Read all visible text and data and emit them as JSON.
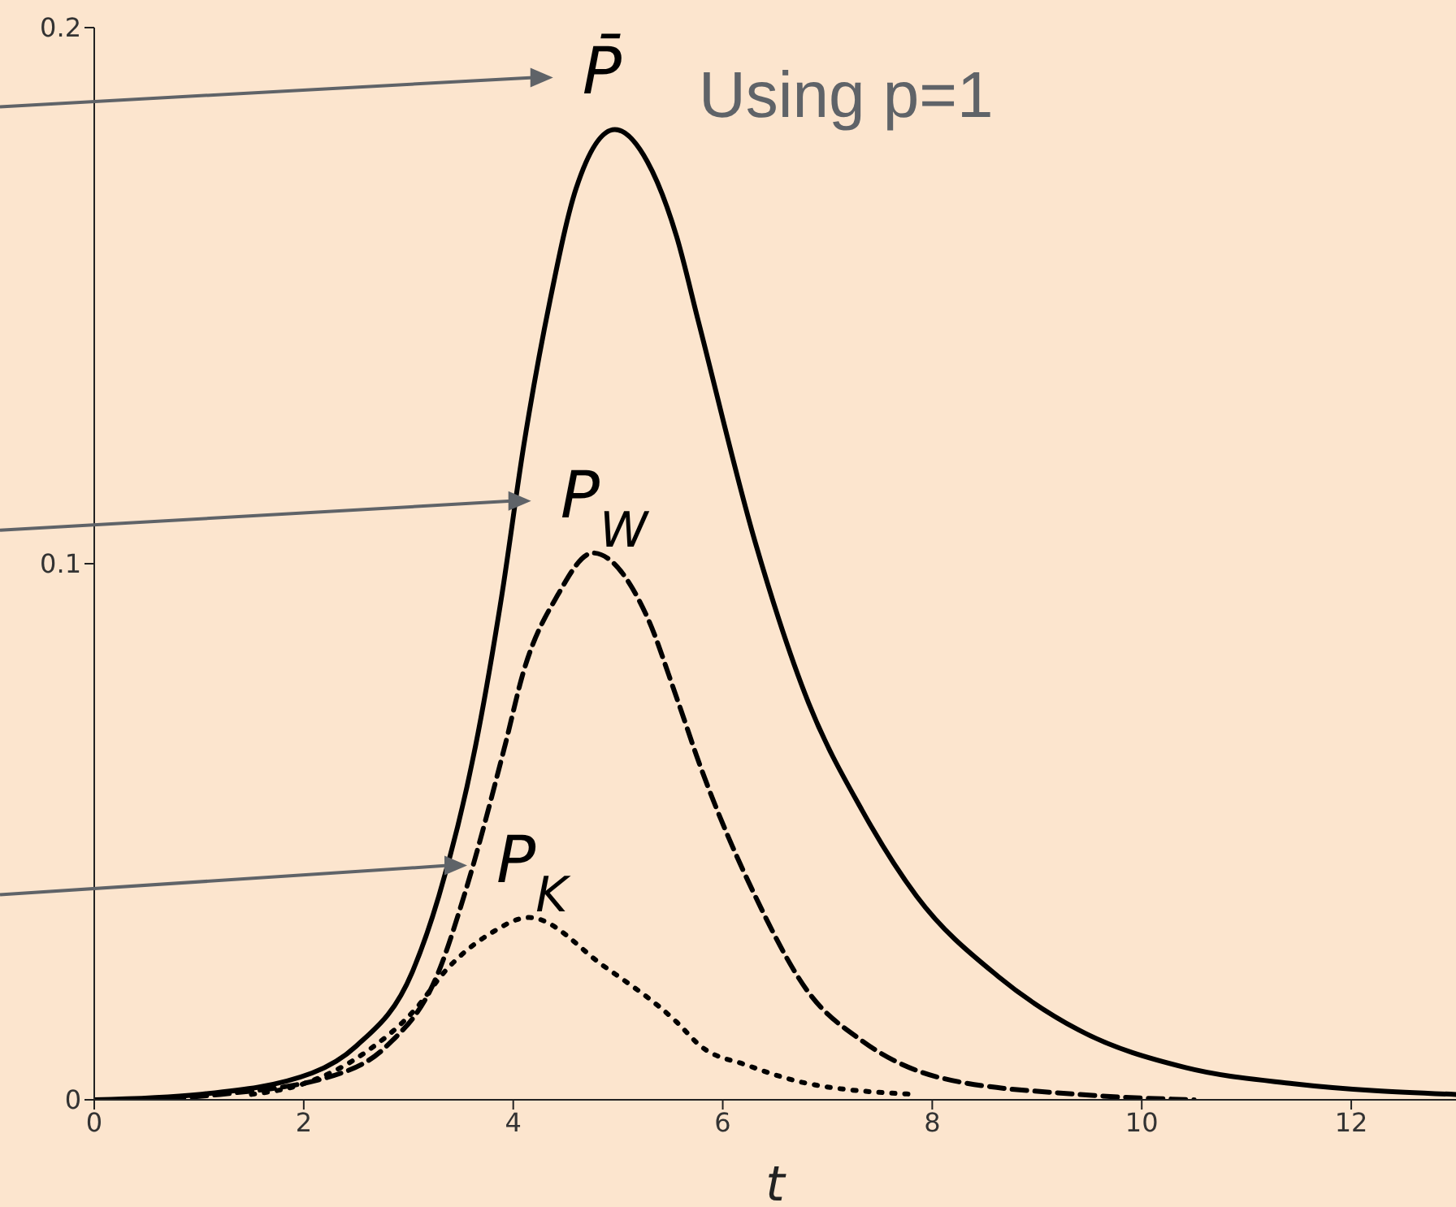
{
  "chart_data": {
    "type": "line",
    "xlabel": "t",
    "xlim": [
      0,
      13
    ],
    "xticks": [
      0,
      2,
      4,
      6,
      8,
      10,
      12
    ],
    "ylim": [
      0,
      0.2
    ],
    "yticks": [
      0,
      0.1,
      0.2
    ],
    "marker": "none",
    "annotations": [
      "Using p=1"
    ],
    "series": [
      {
        "name": "P̄",
        "color": "#000000",
        "line_style": "solid",
        "x": [
          0,
          1,
          2.08,
          2.5,
          3.04,
          3.29,
          3.64,
          3.89,
          4.1,
          4.35,
          4.6,
          4.97,
          5.28,
          5.56,
          5.77,
          6.31,
          6.82,
          7.33,
          7.85,
          8.63,
          9.4,
          10.42,
          11.45,
          13
        ],
        "values": [
          0,
          0.001,
          0.005,
          0.01,
          0.024,
          0.038,
          0.066,
          0.094,
          0.122,
          0.149,
          0.17,
          0.181,
          0.175,
          0.161,
          0.145,
          0.104,
          0.074,
          0.054,
          0.038,
          0.023,
          0.013,
          0.006,
          0.003,
          0.001
        ]
      },
      {
        "name": "P$_{W}$",
        "color": "#000000",
        "line_style": "dashed",
        "x": [
          0.5,
          1.2,
          2.36,
          2.79,
          3.29,
          3.53,
          3.92,
          4.1,
          4.42,
          4.76,
          5.28,
          5.56,
          5.79,
          6.31,
          6.82,
          7.33,
          8.1,
          9.4,
          10.5
        ],
        "values": [
          0,
          0.001,
          0.005,
          0.01,
          0.024,
          0.038,
          0.066,
          0.08,
          0.094,
          0.102,
          0.09,
          0.075,
          0.062,
          0.038,
          0.02,
          0.011,
          0.004,
          0.001,
          0
        ]
      },
      {
        "name": "P$_{K}$",
        "color": "#000000",
        "line_style": "dotted",
        "x": [
          1.5,
          2,
          2.6,
          3.07,
          3.35,
          3.78,
          4.15,
          4.86,
          5.56,
          5.79,
          6.24,
          6.82,
          7.85
        ],
        "values": [
          0.001,
          0.003,
          0.009,
          0.017,
          0.024,
          0.031,
          0.034,
          0.025,
          0.0145,
          0.01,
          0.0064,
          0.003,
          0.001
        ]
      }
    ]
  }
}
